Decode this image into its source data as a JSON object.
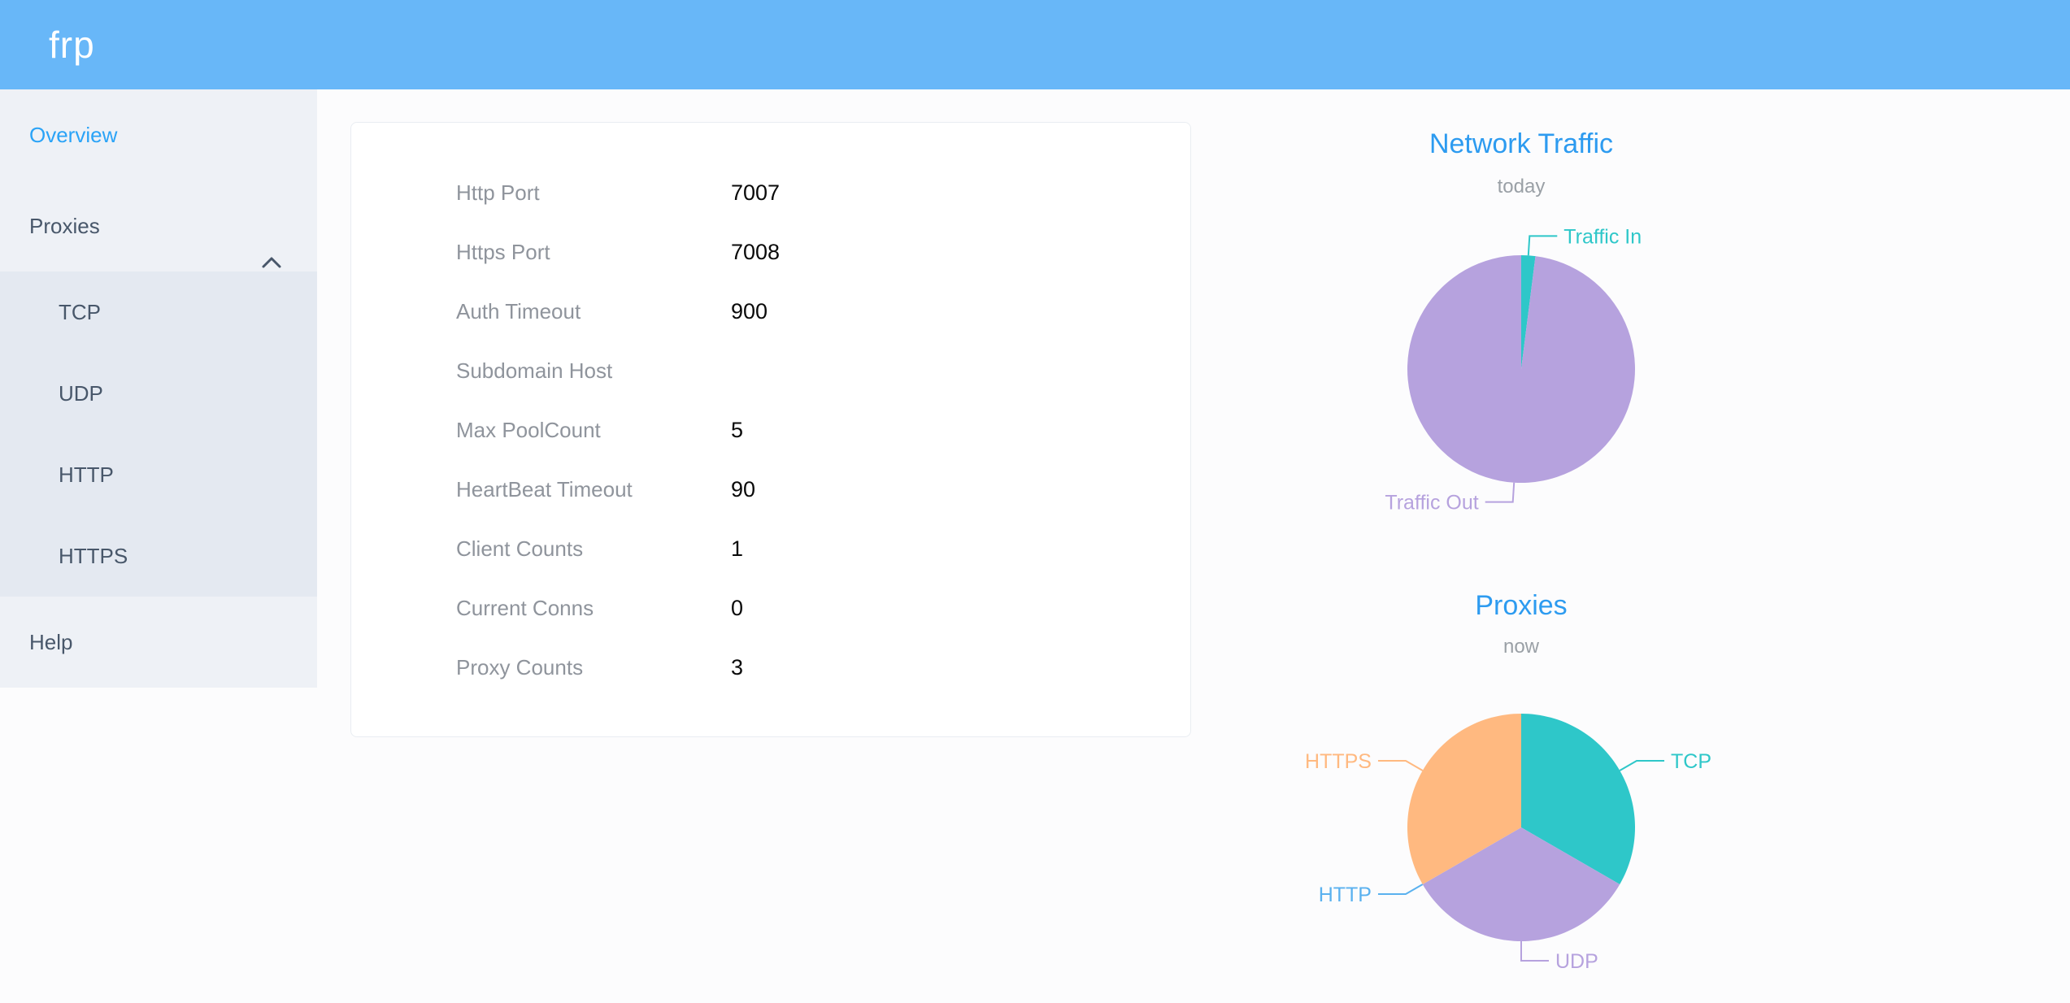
{
  "header": {
    "logo": "frp",
    "background_color": "#68b7f8"
  },
  "sidebar": {
    "items": [
      {
        "label": "Overview",
        "active": true
      },
      {
        "label": "Proxies",
        "expanded": true,
        "children": [
          "TCP",
          "UDP",
          "HTTP",
          "HTTPS"
        ]
      },
      {
        "label": "Help",
        "active": false
      }
    ],
    "active_color": "#2aa3f7",
    "text_color": "#48576a"
  },
  "overview": {
    "rows": [
      {
        "label": "Http Port",
        "value": "7007"
      },
      {
        "label": "Https Port",
        "value": "7008"
      },
      {
        "label": "Auth Timeout",
        "value": "900"
      },
      {
        "label": "Subdomain Host",
        "value": ""
      },
      {
        "label": "Max PoolCount",
        "value": "5"
      },
      {
        "label": "HeartBeat Timeout",
        "value": "90"
      },
      {
        "label": "Client Counts",
        "value": "1"
      },
      {
        "label": "Current Conns",
        "value": "0"
      },
      {
        "label": "Proxy Counts",
        "value": "3"
      }
    ]
  },
  "chart_data": [
    {
      "type": "pie",
      "title": "Network Traffic",
      "subtitle": "today",
      "legend_position": "callout-labels",
      "note": "slice sizes estimated from pixels, percent of circle",
      "slices": [
        {
          "label": "Traffic In",
          "value": 2,
          "color": "#2ec7c9"
        },
        {
          "label": "Traffic Out",
          "value": 98,
          "color": "#b6a2de"
        }
      ]
    },
    {
      "type": "pie",
      "title": "Proxies",
      "subtitle": "now",
      "legend_position": "callout-labels",
      "note": "values are proxy counts per type; total matches Proxy Counts = 3",
      "slices": [
        {
          "label": "TCP",
          "value": 1,
          "color": "#2ec7c9"
        },
        {
          "label": "UDP",
          "value": 1,
          "color": "#b6a2de"
        },
        {
          "label": "HTTP",
          "value": 0,
          "color": "#5ab1ef"
        },
        {
          "label": "HTTPS",
          "value": 1,
          "color": "#ffb980"
        }
      ]
    }
  ],
  "colors": {
    "chart_title": "#2d9bf0",
    "sidebar_bg": "#eef1f6",
    "submenu_bg": "#e4e9f1",
    "card_border": "#e9edf2"
  }
}
